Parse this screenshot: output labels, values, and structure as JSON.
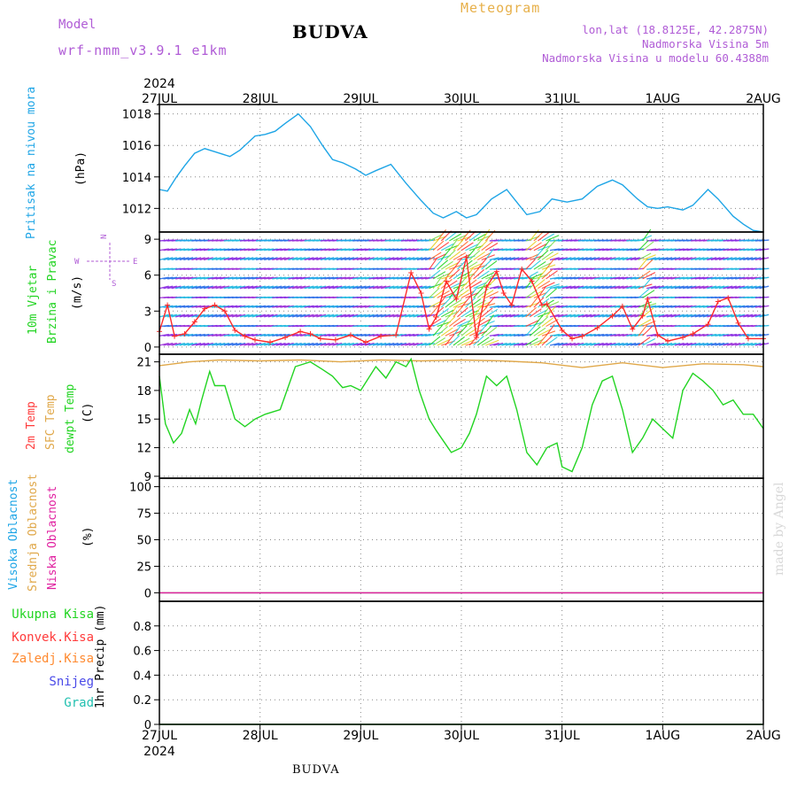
{
  "header": {
    "model_label": "Model",
    "model_name": "wrf-nmm_v3.9.1 e1km",
    "title": "BUDVA",
    "meteogram": "Meteogram",
    "lonlat": "lon,lat (18.8125E, 42.2875N)",
    "altitude": "Nadmorska Visina 5m",
    "model_altitude": "Nadmorska Visina u modelu 60.4388m"
  },
  "footer": {
    "title": "BUDVA",
    "credit": "made by Angel"
  },
  "colors": {
    "pressure": "#1ea5e6",
    "temp2m": "#ff3b3b",
    "sfc": "#e0a84a",
    "dewpt": "#22d422",
    "wind_speed": "#ff2a2a",
    "wind_dir": "#1a1a1a",
    "label_purple": "#b05cd6",
    "label_green": "#22d422",
    "label_blue": "#1ea5e6",
    "label_magenta": "#e020a0"
  },
  "time_axis": {
    "year": "2024",
    "dates": [
      "27JUL",
      "28JUL",
      "29JUL",
      "30JUL",
      "31JUL",
      "1AUG",
      "2AUG"
    ]
  },
  "panels": {
    "pressure": {
      "labels": [
        "Pritisak na nivou mora",
        "(hPa)"
      ]
    },
    "wind": {
      "labels": [
        "10m Vjetar",
        "Brzina i Pravac",
        "(m/s)"
      ],
      "compass": [
        "W",
        "E",
        "N",
        "S"
      ]
    },
    "temperature": {
      "labels": [
        "2m Temp",
        "SFC Temp",
        "dewpt Temp",
        "(C)"
      ]
    },
    "cloud": {
      "labels": [
        "Visoka Oblacnost",
        "Srednja Oblacnost",
        "Niska Oblacnost",
        "(%)"
      ]
    },
    "precip": {
      "labels": [
        "Ukupna Kisa",
        "Konvek.Kisa",
        "Zaledj.Kisa",
        "Snijeg",
        "Grad",
        "1hr Precip (mm)"
      ]
    }
  },
  "chart_data": [
    {
      "type": "line",
      "title": "",
      "ylabel": "(hPa)",
      "x_unit": "days since 27JUL 00",
      "ylim": [
        1010.5,
        1018.6
      ],
      "yticks": [
        1012,
        1014,
        1016,
        1018
      ],
      "grid": true,
      "series": [
        {
          "name": "Pritisak na nivou mora",
          "x": [
            0,
            0.08,
            0.17,
            0.25,
            0.35,
            0.45,
            0.55,
            0.7,
            0.8,
            0.95,
            1.05,
            1.15,
            1.25,
            1.38,
            1.5,
            1.62,
            1.72,
            1.82,
            1.95,
            2.05,
            2.15,
            2.3,
            2.45,
            2.6,
            2.72,
            2.82,
            2.95,
            3.05,
            3.15,
            3.3,
            3.45,
            3.55,
            3.65,
            3.78,
            3.9,
            4.05,
            4.2,
            4.35,
            4.5,
            4.6,
            4.75,
            4.85,
            4.95,
            5.05,
            5.2,
            5.3,
            5.45,
            5.55,
            5.7,
            5.8,
            5.9,
            6.0
          ],
          "y": [
            1013.2,
            1013.1,
            1014.0,
            1014.7,
            1015.5,
            1015.8,
            1015.6,
            1015.3,
            1015.7,
            1016.6,
            1016.7,
            1016.9,
            1017.4,
            1018.0,
            1017.2,
            1016.0,
            1015.1,
            1014.9,
            1014.5,
            1014.1,
            1014.4,
            1014.8,
            1013.6,
            1012.5,
            1011.7,
            1011.4,
            1011.8,
            1011.4,
            1011.6,
            1012.6,
            1013.2,
            1012.4,
            1011.6,
            1011.8,
            1012.6,
            1012.4,
            1012.6,
            1013.4,
            1013.8,
            1013.5,
            1012.6,
            1012.1,
            1012.0,
            1012.1,
            1011.9,
            1012.2,
            1013.2,
            1012.6,
            1011.5,
            1011.0,
            1010.6,
            1010.5
          ]
        }
      ]
    },
    {
      "type": "line",
      "title": "",
      "ylabel": "(m/s)",
      "x_unit": "days since 27JUL 00",
      "ylim": [
        -0.6,
        9.6
      ],
      "yticks": [
        0,
        3,
        6,
        9
      ],
      "grid": true,
      "series": [
        {
          "name": "10m Vjetar Brzina",
          "x": [
            0,
            0.08,
            0.15,
            0.25,
            0.35,
            0.45,
            0.55,
            0.65,
            0.75,
            0.85,
            0.95,
            1.1,
            1.25,
            1.4,
            1.5,
            1.6,
            1.75,
            1.9,
            2.05,
            2.2,
            2.35,
            2.5,
            2.6,
            2.68,
            2.75,
            2.85,
            2.95,
            3.05,
            3.15,
            3.25,
            3.35,
            3.42,
            3.5,
            3.6,
            3.7,
            3.8,
            3.85,
            4.0,
            4.1,
            4.2,
            4.35,
            4.5,
            4.6,
            4.7,
            4.8,
            4.85,
            4.95,
            5.05,
            5.2,
            5.3,
            5.45,
            5.55,
            5.65,
            5.75,
            5.85,
            6.0
          ],
          "y": [
            1.3,
            3.5,
            0.9,
            1.1,
            2.1,
            3.2,
            3.5,
            3.0,
            1.4,
            0.9,
            0.6,
            0.4,
            0.8,
            1.3,
            1.1,
            0.7,
            0.6,
            1.0,
            0.4,
            0.9,
            1.0,
            6.2,
            4.5,
            1.5,
            2.5,
            5.5,
            4.0,
            7.5,
            0.8,
            5.0,
            6.3,
            4.5,
            3.5,
            6.5,
            5.5,
            3.5,
            3.6,
            1.4,
            0.7,
            0.9,
            1.6,
            2.6,
            3.4,
            1.5,
            2.6,
            4.0,
            1.0,
            0.5,
            0.8,
            1.1,
            1.9,
            3.8,
            4.1,
            2.0,
            0.7,
            0.7
          ]
        }
      ]
    },
    {
      "type": "line",
      "title": "",
      "ylabel": "(C)",
      "x_unit": "days since 27JUL 00",
      "ylim": [
        8.8,
        21.8
      ],
      "yticks": [
        9,
        12,
        15,
        18,
        21
      ],
      "grid": true,
      "series": [
        {
          "name": "SFC Temp",
          "x": [
            0,
            0.3,
            0.6,
            1.0,
            1.4,
            1.8,
            2.2,
            2.6,
            3.0,
            3.4,
            3.8,
            4.2,
            4.6,
            5.0,
            5.4,
            5.8,
            6.0
          ],
          "y": [
            20.6,
            21.0,
            21.2,
            21.1,
            21.2,
            21.0,
            21.2,
            21.1,
            21.2,
            21.1,
            20.9,
            20.4,
            20.9,
            20.4,
            20.8,
            20.7,
            20.5
          ]
        },
        {
          "name": "dewpt Temp",
          "x": [
            0,
            0.06,
            0.14,
            0.22,
            0.3,
            0.36,
            0.42,
            0.5,
            0.55,
            0.65,
            0.75,
            0.85,
            0.95,
            1.05,
            1.2,
            1.35,
            1.5,
            1.62,
            1.72,
            1.82,
            1.9,
            2.0,
            2.15,
            2.25,
            2.35,
            2.45,
            2.5,
            2.58,
            2.68,
            2.75,
            2.9,
            3.0,
            3.08,
            3.15,
            3.25,
            3.35,
            3.45,
            3.55,
            3.65,
            3.75,
            3.85,
            3.95,
            4.0,
            4.1,
            4.2,
            4.3,
            4.4,
            4.5,
            4.6,
            4.7,
            4.8,
            4.9,
            5.0,
            5.1,
            5.2,
            5.3,
            5.4,
            5.5,
            5.6,
            5.7,
            5.8,
            5.9,
            6.0
          ],
          "y": [
            19.5,
            14.5,
            12.5,
            13.5,
            16.0,
            14.5,
            17.0,
            20.0,
            18.5,
            18.5,
            15.0,
            14.2,
            15.0,
            15.5,
            16.0,
            20.5,
            21.0,
            20.2,
            19.5,
            18.3,
            18.5,
            18.0,
            20.5,
            19.3,
            21.0,
            20.5,
            21.3,
            18.0,
            15.0,
            13.8,
            11.5,
            12.0,
            13.5,
            15.5,
            19.5,
            18.5,
            19.5,
            16.0,
            11.5,
            10.2,
            12.0,
            12.5,
            10.0,
            9.5,
            12.0,
            16.5,
            19.0,
            19.5,
            16.0,
            11.5,
            13.0,
            15.0,
            14.0,
            13.0,
            18.0,
            19.8,
            19.0,
            18.0,
            16.5,
            17.0,
            15.5,
            15.5,
            14.0
          ]
        }
      ]
    },
    {
      "type": "line",
      "title": "",
      "ylabel": "(%)",
      "x_unit": "days since 27JUL 00",
      "ylim": [
        -8,
        108
      ],
      "yticks": [
        0,
        25,
        50,
        75,
        100
      ],
      "grid": true,
      "series": [
        {
          "name": "Visoka Oblacnost",
          "x": [
            0,
            6
          ],
          "y": [
            0,
            0
          ]
        },
        {
          "name": "Srednja Oblacnost",
          "x": [
            0,
            6
          ],
          "y": [
            0,
            0
          ]
        },
        {
          "name": "Niska Oblacnost",
          "x": [
            0,
            6
          ],
          "y": [
            0,
            0
          ]
        }
      ]
    },
    {
      "type": "line",
      "title": "",
      "ylabel": "1hr Precip (mm)",
      "x_unit": "days since 27JUL 00",
      "ylim": [
        0,
        1.0
      ],
      "yticks": [
        0,
        0.2,
        0.4,
        0.6,
        0.8
      ],
      "grid": true,
      "series": [
        {
          "name": "Ukupna Kisa",
          "x": [
            0,
            6
          ],
          "y": [
            0,
            0
          ]
        }
      ]
    }
  ]
}
